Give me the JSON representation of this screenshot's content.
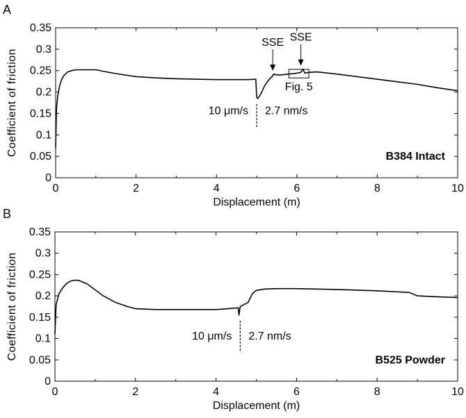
{
  "chart_data": [
    {
      "type": "line",
      "panel_label": "A",
      "xlabel": "Displacement (m)",
      "ylabel": "Coefficient of friction",
      "xlim": [
        0,
        10
      ],
      "ylim": [
        0,
        0.35
      ],
      "xticks": [
        "0",
        "2",
        "4",
        "6",
        "8",
        "10"
      ],
      "yticks": [
        "0",
        "0.05",
        "0.1",
        "0.15",
        "0.2",
        "0.25",
        "0.3",
        "0.35"
      ],
      "sample_label": "B384 Intact",
      "velocity_step": {
        "x": 5.0,
        "left_label": "10 μm/s",
        "right_label": "2.7 nm/s"
      },
      "annotations": [
        {
          "text": "SSE",
          "x": 5.4,
          "y": 0.243
        },
        {
          "text": "SSE",
          "x": 6.1,
          "y": 0.255
        }
      ],
      "inset_box": {
        "text": "Fig. 5",
        "x": [
          5.8,
          6.3
        ],
        "y": [
          0.233,
          0.253
        ]
      },
      "series": [
        {
          "x": [
            0,
            0.02,
            0.05,
            0.1,
            0.15,
            0.2,
            0.3,
            0.4,
            0.5,
            0.6,
            0.8,
            1.0,
            1.2,
            1.5,
            2.0,
            2.5,
            3.0,
            3.5,
            4.0,
            4.5,
            4.8,
            4.98,
            5.0,
            5.03,
            5.1,
            5.2,
            5.3,
            5.4,
            5.42,
            5.5,
            5.6,
            5.8,
            6.0,
            6.1,
            6.15,
            6.2,
            6.3,
            6.5,
            7.0,
            7.5,
            8.0,
            8.5,
            9.0,
            9.5,
            10.0
          ],
          "y": [
            0.07,
            0.16,
            0.19,
            0.215,
            0.23,
            0.238,
            0.247,
            0.25,
            0.252,
            0.252,
            0.252,
            0.252,
            0.248,
            0.243,
            0.236,
            0.233,
            0.231,
            0.23,
            0.229,
            0.229,
            0.229,
            0.23,
            0.188,
            0.185,
            0.195,
            0.215,
            0.228,
            0.238,
            0.242,
            0.24,
            0.24,
            0.242,
            0.244,
            0.246,
            0.253,
            0.244,
            0.246,
            0.247,
            0.242,
            0.236,
            0.23,
            0.224,
            0.218,
            0.21,
            0.203
          ]
        }
      ]
    },
    {
      "type": "line",
      "panel_label": "B",
      "xlabel": "Displacement (m)",
      "ylabel": "Coefficient of friction",
      "xlim": [
        0,
        10
      ],
      "ylim": [
        0,
        0.35
      ],
      "xticks": [
        "0",
        "2",
        "4",
        "6",
        "8",
        "10"
      ],
      "yticks": [
        "0",
        "0.05",
        "0.1",
        "0.15",
        "0.2",
        "0.25",
        "0.3",
        "0.35"
      ],
      "sample_label": "B525 Powder",
      "velocity_step": {
        "x": 4.6,
        "left_label": "10 μm/s",
        "right_label": "2.7 nm/s"
      },
      "series": [
        {
          "x": [
            0,
            0.03,
            0.1,
            0.2,
            0.3,
            0.4,
            0.5,
            0.6,
            0.8,
            1.0,
            1.2,
            1.5,
            1.8,
            2.0,
            2.5,
            3.0,
            3.5,
            4.0,
            4.3,
            4.55,
            4.57,
            4.6,
            4.7,
            4.8,
            4.9,
            5.0,
            5.2,
            5.5,
            6.0,
            7.0,
            8.0,
            8.8,
            9.0,
            9.5,
            10.0
          ],
          "y": [
            0.11,
            0.18,
            0.205,
            0.22,
            0.23,
            0.235,
            0.237,
            0.236,
            0.228,
            0.214,
            0.2,
            0.185,
            0.175,
            0.17,
            0.168,
            0.168,
            0.168,
            0.168,
            0.17,
            0.172,
            0.155,
            0.175,
            0.18,
            0.185,
            0.205,
            0.213,
            0.216,
            0.217,
            0.217,
            0.215,
            0.212,
            0.208,
            0.2,
            0.198,
            0.196
          ]
        }
      ]
    }
  ]
}
